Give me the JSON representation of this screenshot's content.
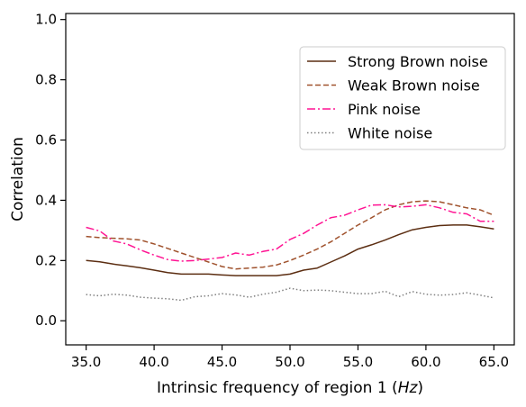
{
  "chart_data": {
    "type": "line",
    "title": "",
    "xlabel_prefix": "Intrinsic frequency of region 1 (",
    "xlabel_unit": "Hz",
    "xlabel_suffix": ")",
    "ylabel": "Correlation",
    "xlim": [
      33.5,
      66.5
    ],
    "ylim": [
      -0.08,
      1.02
    ],
    "xticks": [
      35,
      40,
      45,
      50,
      55,
      60,
      65
    ],
    "xtick_labels": [
      "35.0",
      "40.0",
      "45.0",
      "50.0",
      "55.0",
      "60.0",
      "65.0"
    ],
    "yticks": [
      0.0,
      0.2,
      0.4,
      0.6,
      0.8,
      1.0
    ],
    "ytick_labels": [
      "0.0",
      "0.2",
      "0.4",
      "0.6",
      "0.8",
      "1.0"
    ],
    "grid": false,
    "legend_position": "upper-right",
    "series": [
      {
        "name": "Strong Brown noise",
        "color": "#5c2e12",
        "linestyle": "solid",
        "x": [
          35,
          36,
          37,
          38,
          39,
          40,
          41,
          42,
          43,
          44,
          45,
          46,
          47,
          48,
          49,
          50,
          51,
          52,
          53,
          54,
          55,
          56,
          57,
          58,
          59,
          60,
          61,
          62,
          63,
          64,
          65
        ],
        "y": [
          0.2,
          0.196,
          0.188,
          0.182,
          0.176,
          0.168,
          0.16,
          0.155,
          0.155,
          0.155,
          0.152,
          0.15,
          0.15,
          0.15,
          0.15,
          0.155,
          0.168,
          0.175,
          0.195,
          0.215,
          0.238,
          0.252,
          0.268,
          0.286,
          0.302,
          0.31,
          0.316,
          0.318,
          0.318,
          0.312,
          0.305
        ]
      },
      {
        "name": "Weak Brown noise",
        "color": "#a0522d",
        "linestyle": "dashed",
        "x": [
          35,
          36,
          37,
          38,
          39,
          40,
          41,
          42,
          43,
          44,
          45,
          46,
          47,
          48,
          49,
          50,
          51,
          52,
          53,
          54,
          55,
          56,
          57,
          58,
          59,
          60,
          61,
          62,
          63,
          64,
          65
        ],
        "y": [
          0.28,
          0.276,
          0.274,
          0.272,
          0.268,
          0.255,
          0.24,
          0.225,
          0.21,
          0.195,
          0.18,
          0.172,
          0.175,
          0.178,
          0.185,
          0.2,
          0.218,
          0.238,
          0.262,
          0.29,
          0.318,
          0.342,
          0.368,
          0.385,
          0.395,
          0.398,
          0.395,
          0.385,
          0.375,
          0.368,
          0.35
        ]
      },
      {
        "name": "Pink noise",
        "color": "#ff1493",
        "linestyle": "dashdot",
        "x": [
          35,
          36,
          37,
          38,
          39,
          40,
          41,
          42,
          43,
          44,
          45,
          46,
          47,
          48,
          49,
          50,
          51,
          52,
          53,
          54,
          55,
          56,
          57,
          58,
          59,
          60,
          61,
          62,
          63,
          64,
          65
        ],
        "y": [
          0.31,
          0.298,
          0.265,
          0.255,
          0.235,
          0.218,
          0.203,
          0.198,
          0.2,
          0.205,
          0.21,
          0.225,
          0.218,
          0.23,
          0.238,
          0.27,
          0.29,
          0.318,
          0.342,
          0.35,
          0.368,
          0.384,
          0.385,
          0.378,
          0.38,
          0.385,
          0.375,
          0.36,
          0.355,
          0.33,
          0.33
        ]
      },
      {
        "name": "White noise",
        "color": "#808080",
        "linestyle": "dotted",
        "x": [
          35,
          36,
          37,
          38,
          39,
          40,
          41,
          42,
          43,
          44,
          45,
          46,
          47,
          48,
          49,
          50,
          51,
          52,
          53,
          54,
          55,
          56,
          57,
          58,
          59,
          60,
          61,
          62,
          63,
          64,
          65
        ],
        "y": [
          0.087,
          0.083,
          0.088,
          0.085,
          0.078,
          0.075,
          0.073,
          0.068,
          0.08,
          0.083,
          0.09,
          0.086,
          0.078,
          0.088,
          0.095,
          0.108,
          0.1,
          0.102,
          0.1,
          0.095,
          0.09,
          0.09,
          0.098,
          0.08,
          0.097,
          0.088,
          0.085,
          0.087,
          0.093,
          0.085,
          0.076
        ]
      }
    ]
  }
}
